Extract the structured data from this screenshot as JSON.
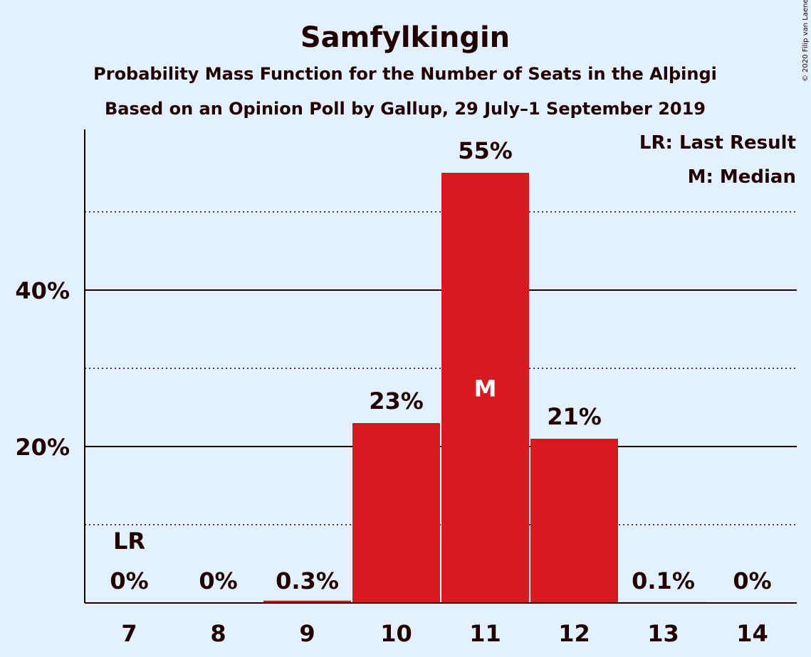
{
  "chart_data": {
    "type": "bar",
    "title": "Samfylkingin",
    "subtitle": "Probability Mass Function for the Number of Seats in the Alþingi",
    "subtitle2": "Based on an Opinion Poll by Gallup, 29 July–1 September 2019",
    "copyright": "© 2020 Filip van Laenen",
    "legend": [
      "LR: Last Result",
      "M: Median"
    ],
    "legend_position": "top-right",
    "categories": [
      "7",
      "8",
      "9",
      "10",
      "11",
      "12",
      "13",
      "14"
    ],
    "values": [
      0,
      0,
      0.3,
      23,
      55,
      21,
      0.1,
      0
    ],
    "value_labels": [
      "0%",
      "0%",
      "0.3%",
      "23%",
      "55%",
      "21%",
      "0.1%",
      "0%"
    ],
    "markers": {
      "last_result": "7",
      "median": "11"
    },
    "marker_labels": {
      "last_result": "LR",
      "median": "M"
    },
    "ylim": [
      0,
      60
    ],
    "yticks": [
      20,
      40
    ],
    "ytick_labels": [
      "20%",
      "40%"
    ],
    "minor_gridlines": [
      10,
      30,
      50
    ],
    "bar_color": "#d71920",
    "background_color": "#e3f1fe",
    "text_color": "#220000"
  }
}
